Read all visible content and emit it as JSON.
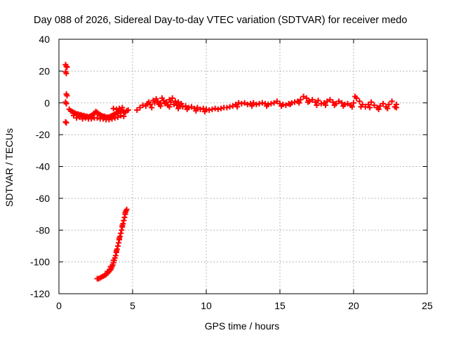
{
  "chart_data": {
    "type": "scatter",
    "title": "Day 088 of 2026, Sidereal Day-to-day VTEC variation (SDTVAR) for receiver medo",
    "xlabel": "GPS time / hours",
    "ylabel": "SDTVAR / TECUs",
    "xlim": [
      0,
      25
    ],
    "ylim": [
      -120,
      40
    ],
    "xticks": [
      0,
      5,
      10,
      15,
      20,
      25
    ],
    "yticks": [
      -120,
      -100,
      -80,
      -60,
      -40,
      -20,
      0,
      20,
      40
    ],
    "grid": true,
    "marker": "+",
    "series": [
      {
        "name": "SDTVAR",
        "color": "#ff0000",
        "points": [
          [
            0.45,
            24
          ],
          [
            0.5,
            23
          ],
          [
            0.55,
            22.5
          ],
          [
            0.45,
            19.5
          ],
          [
            0.5,
            18.5
          ],
          [
            0.5,
            5.5
          ],
          [
            0.55,
            4.5
          ],
          [
            0.45,
            0.5
          ],
          [
            0.5,
            -0.5
          ],
          [
            0.45,
            -12
          ],
          [
            0.5,
            -12.5
          ],
          [
            0.7,
            -4
          ],
          [
            0.8,
            -5
          ],
          [
            0.9,
            -5.5
          ],
          [
            1.0,
            -6
          ],
          [
            1.1,
            -6.5
          ],
          [
            1.2,
            -7
          ],
          [
            1.3,
            -7
          ],
          [
            1.4,
            -7.5
          ],
          [
            1.5,
            -7.5
          ],
          [
            1.6,
            -8
          ],
          [
            1.7,
            -8
          ],
          [
            1.8,
            -8.5
          ],
          [
            1.9,
            -8.5
          ],
          [
            2.0,
            -9
          ],
          [
            2.1,
            -8.5
          ],
          [
            2.2,
            -8
          ],
          [
            2.3,
            -7.5
          ],
          [
            2.4,
            -6.5
          ],
          [
            2.5,
            -5.5
          ],
          [
            2.6,
            -6
          ],
          [
            2.7,
            -7
          ],
          [
            2.8,
            -7.5
          ],
          [
            2.9,
            -8
          ],
          [
            3.0,
            -8.5
          ],
          [
            3.1,
            -8.5
          ],
          [
            3.2,
            -9
          ],
          [
            3.3,
            -9
          ],
          [
            3.4,
            -9
          ],
          [
            3.5,
            -8.5
          ],
          [
            3.6,
            -8
          ],
          [
            3.7,
            -7.5
          ],
          [
            3.8,
            -7
          ],
          [
            3.9,
            -6.5
          ],
          [
            4.0,
            -6
          ],
          [
            4.1,
            -5.5
          ],
          [
            4.2,
            -5
          ],
          [
            4.3,
            -5
          ],
          [
            4.4,
            -5.5
          ],
          [
            4.5,
            -6
          ],
          [
            4.6,
            -5
          ],
          [
            4.7,
            -4.5
          ],
          [
            1.2,
            -9.5
          ],
          [
            1.6,
            -10
          ],
          [
            2.0,
            -10
          ],
          [
            2.4,
            -9.5
          ],
          [
            2.8,
            -10
          ],
          [
            3.2,
            -10.5
          ],
          [
            3.6,
            -10
          ],
          [
            4.0,
            -9
          ],
          [
            4.4,
            -8.5
          ],
          [
            1.0,
            -8
          ],
          [
            1.4,
            -9
          ],
          [
            1.8,
            -9.5
          ],
          [
            2.2,
            -10
          ],
          [
            2.6,
            -9.5
          ],
          [
            3.0,
            -10
          ],
          [
            3.4,
            -10.5
          ],
          [
            3.8,
            -9.5
          ],
          [
            4.2,
            -8
          ],
          [
            3.7,
            -3.5
          ],
          [
            3.9,
            -4
          ],
          [
            4.1,
            -3.5
          ],
          [
            4.3,
            -3
          ],
          [
            2.6,
            -110.5
          ],
          [
            2.7,
            -110.5
          ],
          [
            2.8,
            -110
          ],
          [
            2.9,
            -109.5
          ],
          [
            3.0,
            -109
          ],
          [
            3.1,
            -108.5
          ],
          [
            3.2,
            -108
          ],
          [
            3.3,
            -107
          ],
          [
            3.4,
            -106
          ],
          [
            3.5,
            -105
          ],
          [
            3.55,
            -104
          ],
          [
            3.6,
            -103
          ],
          [
            3.65,
            -102
          ],
          [
            3.7,
            -100.5
          ],
          [
            3.75,
            -99
          ],
          [
            3.8,
            -97.5
          ],
          [
            3.85,
            -96
          ],
          [
            3.9,
            -94
          ],
          [
            3.95,
            -92
          ],
          [
            4.0,
            -90
          ],
          [
            4.05,
            -88
          ],
          [
            4.1,
            -86
          ],
          [
            4.15,
            -84
          ],
          [
            4.2,
            -82
          ],
          [
            4.25,
            -80
          ],
          [
            4.3,
            -78
          ],
          [
            4.35,
            -76
          ],
          [
            4.4,
            -74
          ],
          [
            4.45,
            -72
          ],
          [
            4.5,
            -70
          ],
          [
            4.55,
            -68
          ],
          [
            4.6,
            -67
          ],
          [
            3.3,
            -106
          ],
          [
            3.5,
            -103
          ],
          [
            3.7,
            -99
          ],
          [
            3.9,
            -93
          ],
          [
            4.1,
            -85
          ],
          [
            4.3,
            -77
          ],
          [
            4.5,
            -69
          ],
          [
            5.3,
            -4.5
          ],
          [
            5.5,
            -3
          ],
          [
            5.7,
            -1.5
          ],
          [
            5.9,
            -2
          ],
          [
            6.0,
            -0.5
          ],
          [
            6.1,
            0.5
          ],
          [
            6.2,
            -1
          ],
          [
            6.4,
            1.5
          ],
          [
            6.5,
            0
          ],
          [
            6.6,
            2.5
          ],
          [
            6.7,
            1
          ],
          [
            6.8,
            -1
          ],
          [
            6.9,
            0
          ],
          [
            7.0,
            3
          ],
          [
            7.1,
            1.5
          ],
          [
            7.2,
            -0.5
          ],
          [
            7.3,
            0.5
          ],
          [
            7.4,
            -1.5
          ],
          [
            7.5,
            2
          ],
          [
            7.6,
            0.5
          ],
          [
            7.7,
            3
          ],
          [
            7.8,
            -1
          ],
          [
            7.9,
            1
          ],
          [
            8.0,
            -1.5
          ],
          [
            8.1,
            0.5
          ],
          [
            8.2,
            -2
          ],
          [
            8.3,
            -0.5
          ],
          [
            8.4,
            -2.5
          ],
          [
            8.6,
            -2
          ],
          [
            8.8,
            -3
          ],
          [
            9.0,
            -2.5
          ],
          [
            9.2,
            -3.5
          ],
          [
            9.4,
            -3
          ],
          [
            9.6,
            -4
          ],
          [
            9.8,
            -3.5
          ],
          [
            10.0,
            -4
          ],
          [
            10.2,
            -4.5
          ],
          [
            10.4,
            -4
          ],
          [
            10.6,
            -3.5
          ],
          [
            10.8,
            -4
          ],
          [
            11.0,
            -3.5
          ],
          [
            11.2,
            -3
          ],
          [
            11.4,
            -3
          ],
          [
            11.6,
            -2.5
          ],
          [
            11.8,
            -2
          ],
          [
            12.0,
            -1
          ],
          [
            12.2,
            0
          ],
          [
            12.4,
            -0.5
          ],
          [
            12.6,
            0
          ],
          [
            12.8,
            -1
          ],
          [
            13.0,
            -0.5
          ],
          [
            13.2,
            0
          ],
          [
            13.4,
            -1
          ],
          [
            13.6,
            -0.5
          ],
          [
            13.8,
            0
          ],
          [
            14.0,
            -0.5
          ],
          [
            14.2,
            -1
          ],
          [
            14.4,
            -0.5
          ],
          [
            14.6,
            0
          ],
          [
            14.8,
            1
          ],
          [
            15.0,
            -0.5
          ],
          [
            15.2,
            -1
          ],
          [
            15.4,
            -1.5
          ],
          [
            15.6,
            -0.5
          ],
          [
            15.8,
            0
          ],
          [
            16.0,
            0.5
          ],
          [
            16.2,
            1
          ],
          [
            16.4,
            2
          ],
          [
            16.6,
            4
          ],
          [
            16.8,
            3
          ],
          [
            17.0,
            1
          ],
          [
            17.2,
            2
          ],
          [
            17.4,
            0.5
          ],
          [
            17.6,
            1.5
          ],
          [
            17.8,
            -0.5
          ],
          [
            18.0,
            0
          ],
          [
            18.2,
            1
          ],
          [
            18.4,
            2
          ],
          [
            18.6,
            0.5
          ],
          [
            18.8,
            -0.5
          ],
          [
            19.0,
            1
          ],
          [
            19.2,
            0
          ],
          [
            19.4,
            -1
          ],
          [
            19.6,
            -0.5
          ],
          [
            19.8,
            -1.5
          ],
          [
            20.0,
            0
          ],
          [
            20.1,
            4
          ],
          [
            20.2,
            3
          ],
          [
            20.4,
            1
          ],
          [
            20.6,
            -1
          ],
          [
            20.8,
            -2.5
          ],
          [
            21.0,
            -1
          ],
          [
            21.2,
            0.5
          ],
          [
            21.4,
            -1.5
          ],
          [
            21.6,
            -3
          ],
          [
            21.8,
            -2
          ],
          [
            22.0,
            -0.5
          ],
          [
            22.2,
            -2.5
          ],
          [
            22.4,
            -1
          ],
          [
            22.6,
            1
          ],
          [
            22.8,
            -2.5
          ],
          [
            22.9,
            -1
          ],
          [
            6.3,
            -3
          ],
          [
            6.9,
            -2
          ],
          [
            7.5,
            -2.5
          ],
          [
            8.1,
            -3.5
          ],
          [
            8.7,
            -4
          ],
          [
            9.3,
            -5
          ],
          [
            9.9,
            -5.5
          ],
          [
            12.1,
            -2.5
          ],
          [
            13.1,
            -2
          ],
          [
            14.1,
            -2
          ],
          [
            15.1,
            -2
          ],
          [
            15.7,
            -1
          ],
          [
            16.3,
            0
          ],
          [
            16.9,
            0.5
          ],
          [
            17.5,
            -1.5
          ],
          [
            18.1,
            -1.5
          ],
          [
            18.7,
            -1.5
          ],
          [
            19.3,
            -2
          ],
          [
            19.9,
            -2.5
          ],
          [
            20.5,
            -2.5
          ],
          [
            21.1,
            -3
          ],
          [
            21.7,
            -4
          ],
          [
            22.3,
            -3.5
          ],
          [
            22.9,
            -3
          ]
        ]
      }
    ]
  }
}
